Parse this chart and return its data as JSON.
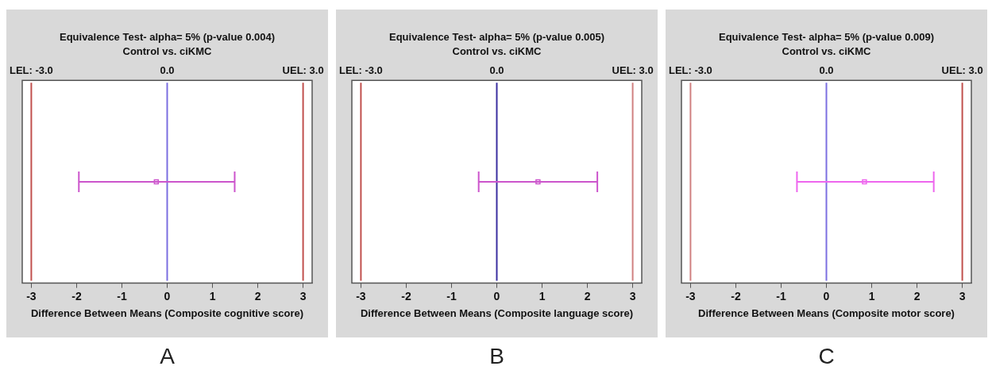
{
  "chart_data": [
    {
      "type": "scatter",
      "title": "Equivalence Test- alpha= 5% (p-value 0.004)",
      "subtitle": "Control vs. ciKMC",
      "xlabel": "Difference Between Means (Composite cognitive score)",
      "orientation": "horizontal",
      "categories": [
        null
      ],
      "values": [
        -0.24
      ],
      "errors": [
        [
          -1.95,
          1.49
        ]
      ],
      "color": "#cc55cc",
      "marker": "square",
      "xlim": [
        -3.2,
        3.2
      ],
      "xticks": [
        -3,
        -2,
        -1,
        0,
        1,
        2,
        3
      ],
      "tick_labels": "x",
      "grid": false,
      "legend": false,
      "ref_lines": [
        {
          "axis": "x",
          "value": -3,
          "label": "LEL: -3.0",
          "color": "#c0504d"
        },
        {
          "axis": "x",
          "value": 0,
          "label": "0.0",
          "color": "#7b6fe0"
        },
        {
          "axis": "x",
          "value": 3,
          "label": "UEL: 3.0",
          "color": "#c0504d"
        }
      ],
      "annotations": [
        "A"
      ]
    },
    {
      "type": "scatter",
      "title": "Equivalence Test- alpha= 5% (p-value 0.005)",
      "subtitle": "Control vs. ciKMC",
      "xlabel": "Difference Between Means (Composite language score)",
      "orientation": "horizontal",
      "categories": [
        null
      ],
      "values": [
        0.91
      ],
      "errors": [
        [
          -0.4,
          2.22
        ]
      ],
      "color": "#cc55cc",
      "marker": "square",
      "xlim": [
        -3.2,
        3.2
      ],
      "xticks": [
        -3,
        -2,
        -1,
        0,
        1,
        2,
        3
      ],
      "tick_labels": "x",
      "grid": false,
      "legend": false,
      "ref_lines": [
        {
          "axis": "x",
          "value": -3,
          "label": "LEL: -3.0",
          "color": "#c0504d"
        },
        {
          "axis": "x",
          "value": 0,
          "label": "0.0",
          "color": "#3a2fa0"
        },
        {
          "axis": "x",
          "value": 3,
          "label": "UEL: 3.0",
          "color": "#d08080"
        }
      ],
      "annotations": [
        "B"
      ]
    },
    {
      "type": "scatter",
      "title": "Equivalence Test- alpha= 5% (p-value 0.009)",
      "subtitle": "Control vs. ciKMC",
      "xlabel": "Difference Between Means (Composite motor score)",
      "orientation": "horizontal",
      "categories": [
        null
      ],
      "values": [
        0.84
      ],
      "errors": [
        [
          -0.65,
          2.37
        ]
      ],
      "color": "#ee66ee",
      "marker": "square",
      "xlim": [
        -3.2,
        3.2
      ],
      "xticks": [
        -3,
        -2,
        -1,
        0,
        1,
        2,
        3
      ],
      "tick_labels": "x",
      "grid": false,
      "legend": false,
      "ref_lines": [
        {
          "axis": "x",
          "value": -3,
          "label": "LEL: -3.0",
          "color": "#d08080"
        },
        {
          "axis": "x",
          "value": 0,
          "label": "0.0",
          "color": "#7b6fe0"
        },
        {
          "axis": "x",
          "value": 3,
          "label": "UEL: 3.0",
          "color": "#c0504d"
        }
      ],
      "annotations": [
        "C"
      ]
    }
  ]
}
